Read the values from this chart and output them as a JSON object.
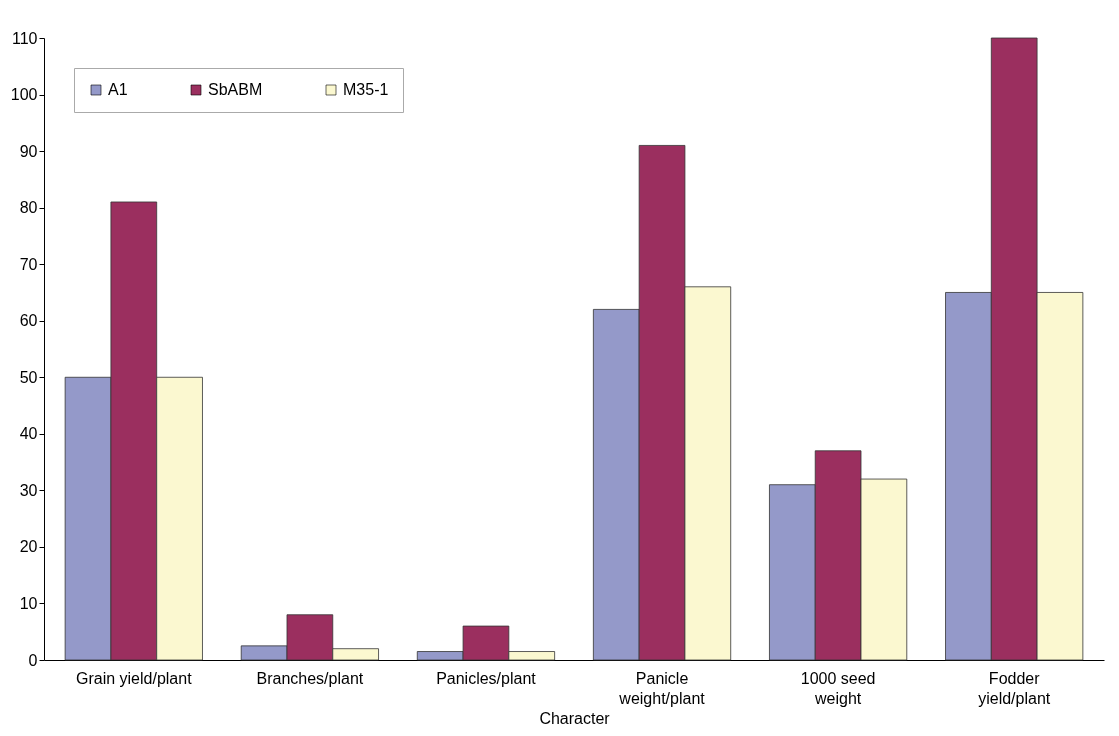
{
  "chart_data": {
    "type": "bar",
    "xlabel": "Character",
    "categories": [
      "Grain yield/plant",
      "Branches/plant",
      "Panicles/plant",
      "Panicle weight/plant",
      "1000 seed weight",
      "Fodder yield/plant"
    ],
    "series": [
      {
        "name": "A1",
        "color": "#9499c9",
        "values": [
          50,
          2.5,
          1.5,
          62,
          31,
          65
        ]
      },
      {
        "name": "SbABM",
        "color": "#9b2f5f",
        "values": [
          81,
          8,
          6,
          91,
          37,
          110
        ]
      },
      {
        "name": "M35-1",
        "color": "#fbf8d0",
        "values": [
          50,
          2,
          1.5,
          66,
          32,
          65
        ]
      }
    ],
    "ylim": [
      0,
      110
    ],
    "yticks": [
      0,
      10,
      20,
      30,
      40,
      50,
      60,
      70,
      80,
      90,
      100,
      110
    ],
    "grid": false,
    "legend": "top left"
  }
}
